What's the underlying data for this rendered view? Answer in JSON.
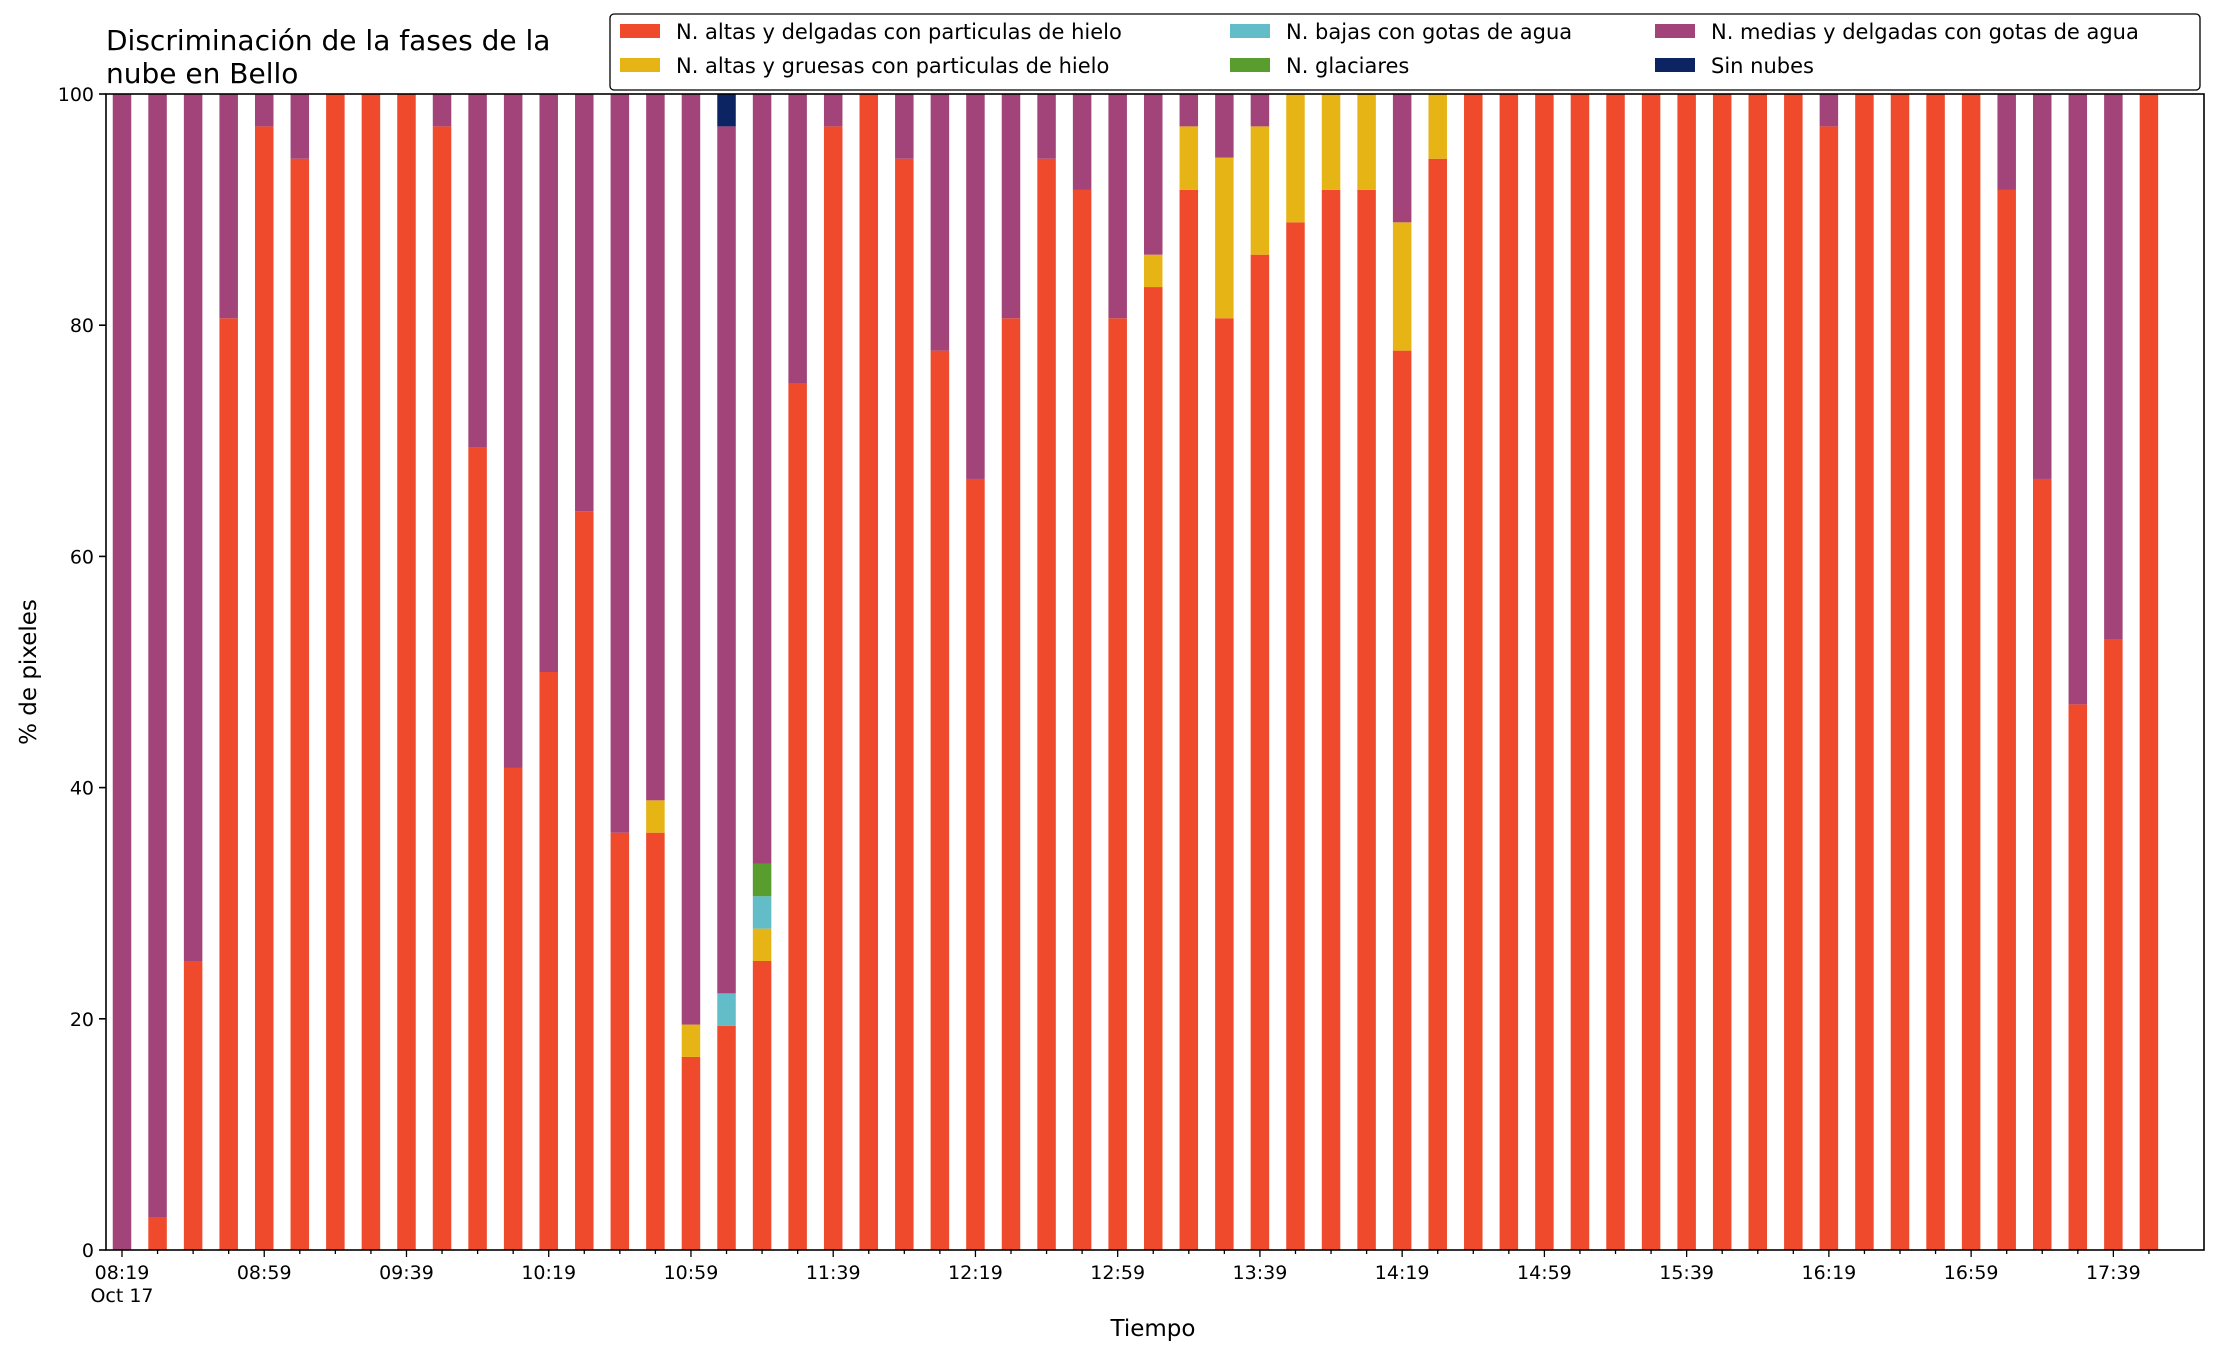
{
  "chart_data": {
    "type": "bar",
    "stacked": true,
    "title": "Discriminación de la fases de la\nnube en Bello",
    "xlabel": "Tiempo",
    "ylabel": "% de pixeles",
    "ylim": [
      0,
      100
    ],
    "y_ticks": [
      0,
      20,
      40,
      60,
      80,
      100
    ],
    "x_tick_labels": [
      "08:19\nOct 17",
      "08:59",
      "09:39",
      "10:19",
      "10:59",
      "11:39",
      "12:19",
      "12:59",
      "13:39",
      "14:19",
      "14:59",
      "15:39",
      "16:19",
      "16:59",
      "17:39"
    ],
    "x_tick_every": 4,
    "grid": false,
    "legend_position": "top-right",
    "categories": [
      "08:19",
      "08:29",
      "08:39",
      "08:49",
      "08:59",
      "09:09",
      "09:19",
      "09:29",
      "09:39",
      "09:49",
      "09:59",
      "10:09",
      "10:19",
      "10:29",
      "10:39",
      "10:49",
      "10:59",
      "11:09",
      "11:19",
      "11:29",
      "11:39",
      "11:49",
      "11:59",
      "12:09",
      "12:19",
      "12:29",
      "12:39",
      "12:49",
      "12:59",
      "13:09",
      "13:19",
      "13:29",
      "13:39",
      "13:49",
      "13:59",
      "14:09",
      "14:19",
      "14:29",
      "14:39",
      "14:49",
      "14:59",
      "15:09",
      "15:19",
      "15:29",
      "15:39",
      "15:49",
      "15:59",
      "16:09",
      "16:19",
      "16:29",
      "16:39",
      "16:49",
      "16:59",
      "17:09",
      "17:19",
      "17:29",
      "17:39",
      "17:49"
    ],
    "series": [
      {
        "name": "N. altas y delgadas con particulas de hielo",
        "color": "#ef4a2b",
        "values": [
          0,
          2.8,
          25,
          80.6,
          97.2,
          94.4,
          100,
          100,
          100,
          97.2,
          69.4,
          41.7,
          50,
          63.9,
          36.1,
          36.1,
          16.7,
          19.4,
          25,
          75,
          97.2,
          100,
          94.4,
          77.8,
          66.7,
          80.6,
          94.4,
          91.7,
          80.6,
          83.3,
          91.7,
          80.6,
          86.1,
          88.9,
          91.7,
          91.7,
          77.8,
          94.4,
          100,
          100,
          100,
          100,
          100,
          100,
          100,
          100,
          100,
          100,
          97.2,
          100,
          100,
          100,
          100,
          91.7,
          66.7,
          47.2,
          52.8,
          100
        ]
      },
      {
        "name": "N. altas y gruesas con particulas de hielo",
        "color": "#e7b416",
        "values": [
          0,
          0,
          0,
          0,
          0,
          0,
          0,
          0,
          0,
          0,
          0,
          0,
          0,
          0,
          0,
          2.8,
          2.8,
          0,
          2.8,
          0,
          0,
          0,
          0,
          0,
          0,
          0,
          0,
          0,
          0,
          2.8,
          5.5,
          13.9,
          11.1,
          11.1,
          8.3,
          8.3,
          11.1,
          5.6,
          0,
          0,
          0,
          0,
          0,
          0,
          0,
          0,
          0,
          0,
          0,
          0,
          0,
          0,
          0,
          0,
          0,
          0,
          0,
          0
        ]
      },
      {
        "name": "N. bajas con gotas de agua",
        "color": "#62bdc8",
        "values": [
          0,
          0,
          0,
          0,
          0,
          0,
          0,
          0,
          0,
          0,
          0,
          0,
          0,
          0,
          0,
          0,
          0,
          2.8,
          2.8,
          0,
          0,
          0,
          0,
          0,
          0,
          0,
          0,
          0,
          0,
          0,
          0,
          0,
          0,
          0,
          0,
          0,
          0,
          0,
          0,
          0,
          0,
          0,
          0,
          0,
          0,
          0,
          0,
          0,
          0,
          0,
          0,
          0,
          0,
          0,
          0,
          0,
          0,
          0
        ]
      },
      {
        "name": "N. glaciares",
        "color": "#5a9d2f",
        "values": [
          0,
          0,
          0,
          0,
          0,
          0,
          0,
          0,
          0,
          0,
          0,
          0,
          0,
          0,
          0,
          0,
          0,
          0,
          2.8,
          0,
          0,
          0,
          0,
          0,
          0,
          0,
          0,
          0,
          0,
          0,
          0,
          0,
          0,
          0,
          0,
          0,
          0,
          0,
          0,
          0,
          0,
          0,
          0,
          0,
          0,
          0,
          0,
          0,
          0,
          0,
          0,
          0,
          0,
          0,
          0,
          0,
          0,
          0
        ]
      },
      {
        "name": "N. medias y delgadas con gotas de agua",
        "color": "#a2447a",
        "values": [
          100,
          97.2,
          75,
          19.4,
          2.8,
          5.6,
          0,
          0,
          0,
          2.8,
          30.6,
          58.3,
          50,
          36.1,
          63.9,
          61.1,
          80.5,
          75,
          66.6,
          25,
          2.8,
          0,
          5.6,
          22.2,
          33.3,
          19.4,
          5.6,
          8.3,
          19.4,
          13.9,
          2.8,
          5.5,
          2.8,
          0,
          0,
          0,
          11.1,
          0,
          0,
          0,
          0,
          0,
          0,
          0,
          0,
          0,
          0,
          0,
          2.8,
          0,
          0,
          0,
          0,
          8.3,
          33.3,
          52.8,
          47.2,
          0
        ]
      },
      {
        "name": "Sin nubes",
        "color": "#0d2462",
        "values": [
          0,
          0,
          0,
          0,
          0,
          0,
          0,
          0,
          0,
          0,
          0,
          0,
          0,
          0,
          0,
          0,
          0,
          2.8,
          0,
          0,
          0,
          0,
          0,
          0,
          0,
          0,
          0,
          0,
          0,
          0,
          0,
          0,
          0,
          0,
          0,
          0,
          0,
          0,
          0,
          0,
          0,
          0,
          0,
          0,
          0,
          0,
          0,
          0,
          0,
          0,
          0,
          0,
          0,
          0,
          0,
          0,
          0,
          0
        ]
      }
    ]
  }
}
